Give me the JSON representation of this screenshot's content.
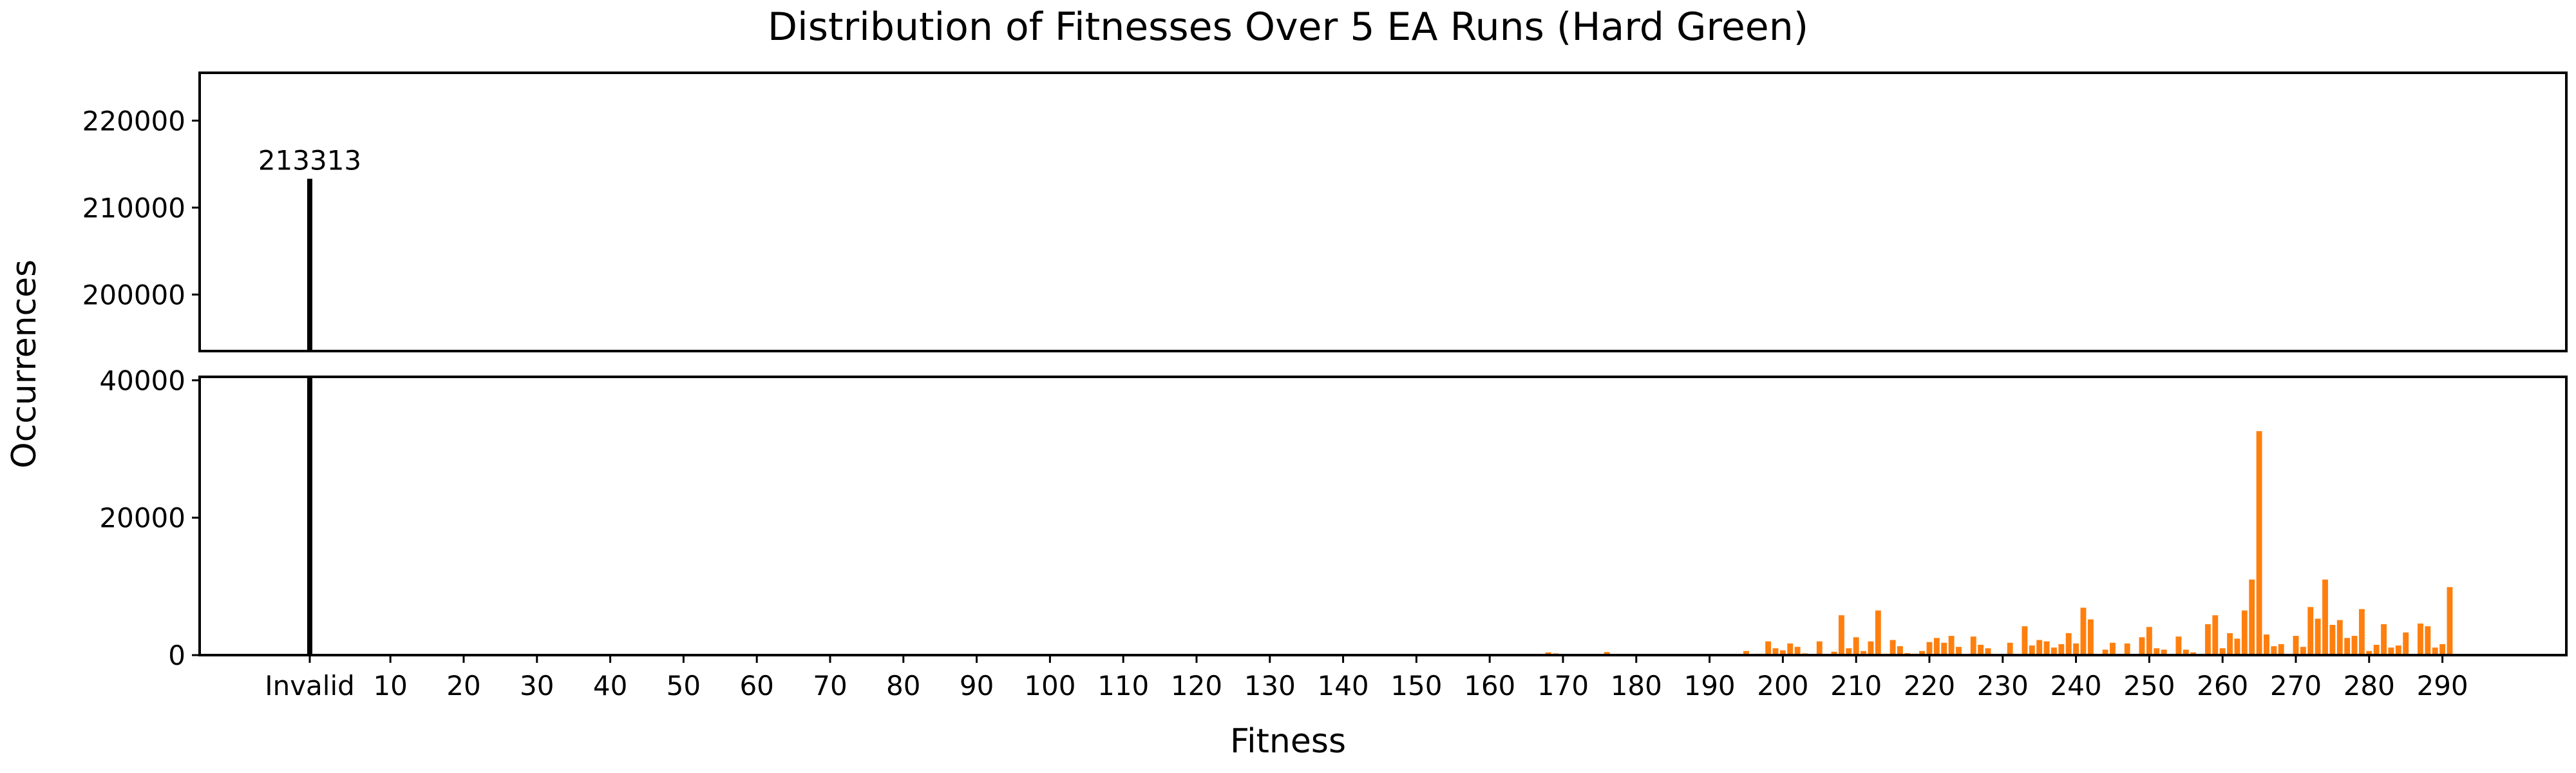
{
  "chart_data": {
    "type": "bar",
    "title": "Distribution of Fitnesses Over 5 EA Runs (Hard Green)",
    "xlabel": "Fitness",
    "ylabel": "Occurrences",
    "layout": "broken-y-axis",
    "upper_ylim": [
      193500,
      225500
    ],
    "lower_ylim": [
      0,
      40500
    ],
    "upper_yticks": [
      "200000",
      "210000",
      "220000"
    ],
    "lower_yticks": [
      "0",
      "20000",
      "40000"
    ],
    "xticks": [
      "Invalid",
      "10",
      "20",
      "30",
      "40",
      "50",
      "60",
      "70",
      "80",
      "90",
      "100",
      "110",
      "120",
      "130",
      "140",
      "150",
      "160",
      "170",
      "180",
      "190",
      "200",
      "210",
      "220",
      "230",
      "240",
      "250",
      "260",
      "270",
      "280",
      "290"
    ],
    "invalid": {
      "label": "Invalid",
      "value": 213313,
      "value_label": "213313",
      "color": "#000000"
    },
    "valid_color": "#ff7f0e",
    "valid_bars": [
      [
        157,
        60
      ],
      [
        168,
        400
      ],
      [
        169,
        250
      ],
      [
        173,
        150
      ],
      [
        176,
        450
      ],
      [
        180,
        120
      ],
      [
        191,
        80
      ],
      [
        195,
        600
      ],
      [
        197,
        200
      ],
      [
        198,
        2000
      ],
      [
        199,
        1000
      ],
      [
        200,
        700
      ],
      [
        201,
        1700
      ],
      [
        202,
        1200
      ],
      [
        203,
        250
      ],
      [
        205,
        2000
      ],
      [
        207,
        500
      ],
      [
        208,
        5800
      ],
      [
        209,
        1000
      ],
      [
        210,
        2600
      ],
      [
        211,
        600
      ],
      [
        212,
        2000
      ],
      [
        213,
        6500
      ],
      [
        214,
        200
      ],
      [
        215,
        2200
      ],
      [
        216,
        1300
      ],
      [
        217,
        300
      ],
      [
        218,
        200
      ],
      [
        219,
        600
      ],
      [
        220,
        1900
      ],
      [
        221,
        2500
      ],
      [
        222,
        1800
      ],
      [
        223,
        2800
      ],
      [
        224,
        1200
      ],
      [
        226,
        2700
      ],
      [
        227,
        1500
      ],
      [
        228,
        1000
      ],
      [
        231,
        1800
      ],
      [
        233,
        4200
      ],
      [
        234,
        1400
      ],
      [
        235,
        2200
      ],
      [
        236,
        2000
      ],
      [
        237,
        1100
      ],
      [
        238,
        1600
      ],
      [
        239,
        3200
      ],
      [
        240,
        1700
      ],
      [
        241,
        6900
      ],
      [
        242,
        5200
      ],
      [
        244,
        800
      ],
      [
        245,
        1800
      ],
      [
        247,
        1700
      ],
      [
        249,
        2600
      ],
      [
        250,
        4100
      ],
      [
        251,
        1000
      ],
      [
        252,
        800
      ],
      [
        254,
        2700
      ],
      [
        255,
        800
      ],
      [
        256,
        400
      ],
      [
        258,
        4500
      ],
      [
        259,
        5800
      ],
      [
        260,
        1000
      ],
      [
        261,
        3200
      ],
      [
        262,
        2400
      ],
      [
        263,
        6500
      ],
      [
        264,
        11000
      ],
      [
        265,
        32600
      ],
      [
        266,
        3000
      ],
      [
        267,
        1300
      ],
      [
        268,
        1600
      ],
      [
        270,
        2800
      ],
      [
        271,
        1200
      ],
      [
        272,
        7000
      ],
      [
        273,
        5300
      ],
      [
        274,
        11000
      ],
      [
        275,
        4400
      ],
      [
        276,
        5100
      ],
      [
        277,
        2500
      ],
      [
        278,
        2800
      ],
      [
        279,
        6700
      ],
      [
        280,
        600
      ],
      [
        281,
        1500
      ],
      [
        282,
        4500
      ],
      [
        283,
        1100
      ],
      [
        284,
        1400
      ],
      [
        285,
        3300
      ],
      [
        287,
        4600
      ],
      [
        288,
        4200
      ],
      [
        289,
        1100
      ],
      [
        290,
        1600
      ],
      [
        291,
        9900
      ]
    ]
  }
}
